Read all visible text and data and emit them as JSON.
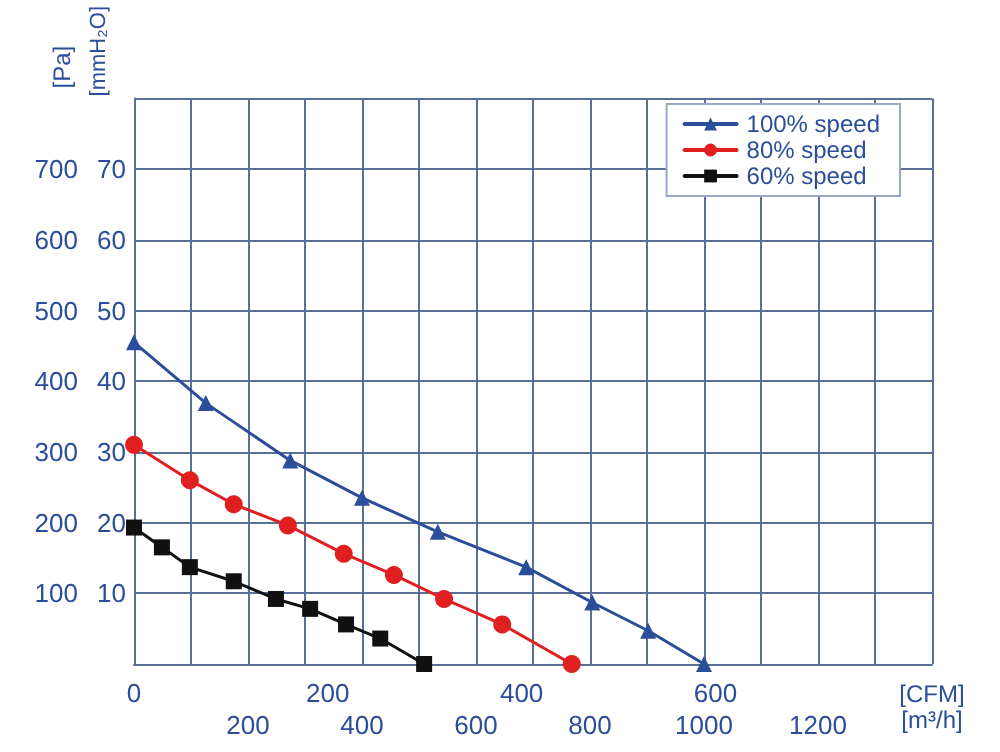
{
  "chart_data": {
    "type": "line",
    "xlabel": "[m³/h]",
    "x2label": "[CFM]",
    "ylabel": "[Pa]",
    "y2label": "[mmH₂O]",
    "xlim": [
      0,
      1400
    ],
    "xticks": [
      {
        "value": 0,
        "label": null
      },
      {
        "value": 100,
        "label": null
      },
      200,
      {
        "value": 300,
        "label": null
      },
      400,
      {
        "value": 500,
        "label": null
      },
      600,
      {
        "value": 700,
        "label": null
      },
      800,
      {
        "value": 900,
        "label": null
      },
      1000,
      {
        "value": 1100,
        "label": null
      },
      1200,
      {
        "value": 1300,
        "label": null
      },
      {
        "value": 1400,
        "label": null
      }
    ],
    "x2lim": [
      0,
      823.5
    ],
    "x2ticks": [
      0,
      200,
      400,
      600
    ],
    "ylim": [
      0,
      800
    ],
    "yticks": [
      {
        "value": 0,
        "label": null
      },
      100,
      200,
      300,
      400,
      500,
      600,
      700,
      {
        "value": 800,
        "label": null
      }
    ],
    "y2lim": [
      0,
      80
    ],
    "y2ticks": [
      10,
      20,
      30,
      40,
      50,
      60,
      70
    ],
    "grid": true,
    "legend": "top right",
    "line_style": "solid",
    "series": [
      {
        "name": "100% speed",
        "color": "#2a4e9a",
        "marker": "triangle",
        "x": [
          0,
          126,
          274,
          400,
          533,
          688,
          804,
          902,
          1000
        ],
        "values": [
          455,
          369,
          288,
          235,
          187,
          137,
          87,
          47,
          0
        ]
      },
      {
        "name": "80% speed",
        "color": "#e02020",
        "marker": "circle",
        "x": [
          0,
          98,
          175,
          270,
          368,
          456,
          544,
          646,
          768
        ],
        "values": [
          310,
          260,
          226,
          196,
          156,
          126,
          92,
          56,
          0
        ]
      },
      {
        "name": "60% speed",
        "color": "#111111",
        "marker": "square",
        "x": [
          0,
          49,
          98,
          175,
          249,
          309,
          372,
          432,
          509
        ],
        "values": [
          193,
          165,
          137,
          117,
          92,
          78,
          56,
          36,
          0
        ]
      }
    ]
  }
}
